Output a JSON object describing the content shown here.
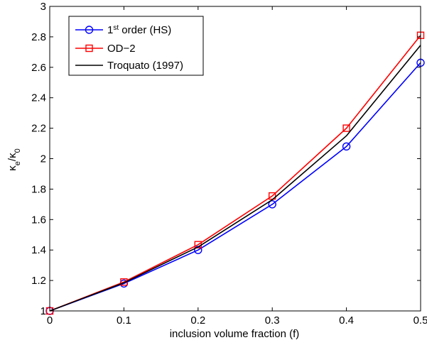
{
  "chart_data": {
    "type": "line",
    "x": [
      0,
      0.1,
      0.2,
      0.3,
      0.4,
      0.5
    ],
    "xlabel": "inclusion volume fraction (f)",
    "ylabel": "κe/κ0",
    "xlim": [
      0,
      0.5
    ],
    "ylim": [
      1,
      3
    ],
    "xticks": [
      "0",
      "0.1",
      "0.2",
      "0.3",
      "0.4",
      "0.5"
    ],
    "yticks": [
      "1",
      "1.2",
      "1.4",
      "1.6",
      "1.8",
      "2",
      "2.2",
      "2.4",
      "2.6",
      "2.8",
      "3"
    ],
    "grid": false,
    "legend_position": "top-left",
    "series": [
      {
        "name": "1st order (HS)",
        "color": "#0000ff",
        "marker": "circle",
        "values": [
          1.0,
          1.18,
          1.4,
          1.7,
          2.08,
          2.63
        ]
      },
      {
        "name": "OD−2",
        "color": "#ff0000",
        "marker": "square",
        "values": [
          1.0,
          1.19,
          1.435,
          1.755,
          2.2,
          2.81
        ]
      },
      {
        "name": "Troquato (1997)",
        "color": "#000000",
        "marker": "none",
        "values": [
          1.0,
          1.185,
          1.42,
          1.73,
          2.15,
          2.745
        ]
      }
    ]
  }
}
